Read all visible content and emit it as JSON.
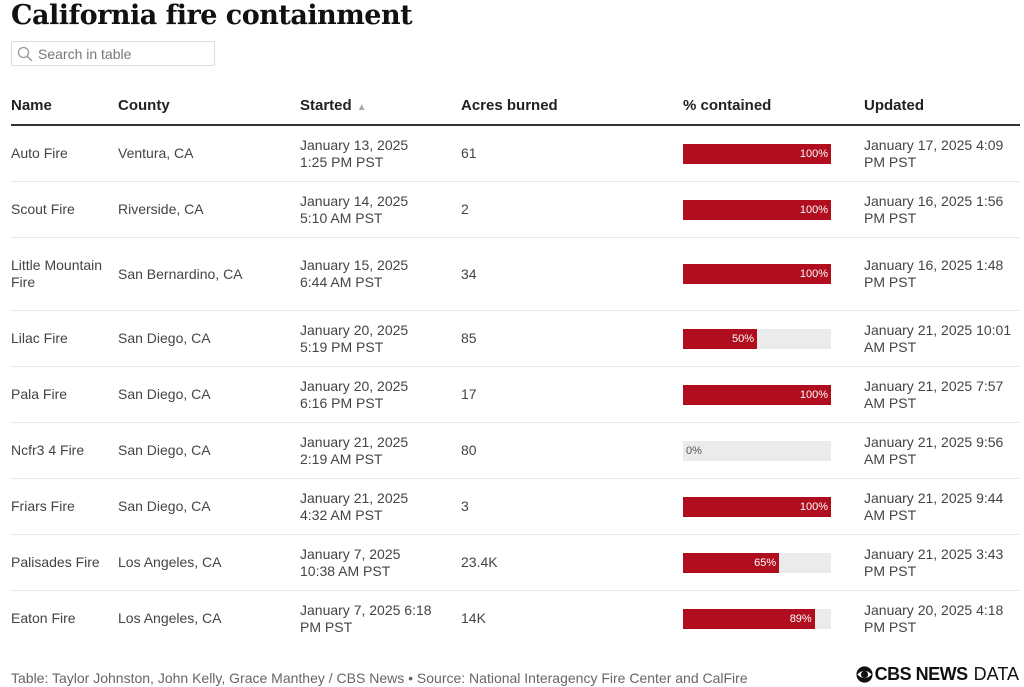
{
  "title": "California fire containment",
  "search": {
    "placeholder": "Search in table"
  },
  "columns": {
    "name": "Name",
    "county": "County",
    "started": "Started",
    "acres": "Acres burned",
    "contained": "% contained",
    "updated": "Updated"
  },
  "colors": {
    "bar_fill": "#b00d1e",
    "bar_track": "#ebebeb"
  },
  "rows": [
    {
      "name": "Auto Fire",
      "county": "Ventura, CA",
      "started_l1": "January 13, 2025",
      "started_l2": "1:25 PM PST",
      "acres": "61",
      "contained": 100,
      "contained_label": "100%",
      "updated_l1": "January 17, 2025 4:09",
      "updated_l2": "PM PST"
    },
    {
      "name": "Scout Fire",
      "county": "Riverside, CA",
      "started_l1": "January 14, 2025",
      "started_l2": "5:10 AM PST",
      "acres": "2",
      "contained": 100,
      "contained_label": "100%",
      "updated_l1": "January 16, 2025 1:56",
      "updated_l2": "PM PST"
    },
    {
      "name": "Little Mountain Fire",
      "county": "San Bernardino, CA",
      "started_l1": "January 15, 2025",
      "started_l2": "6:44 AM PST",
      "acres": "34",
      "contained": 100,
      "contained_label": "100%",
      "updated_l1": "January 16, 2025 1:48",
      "updated_l2": "PM PST"
    },
    {
      "name": "Lilac Fire",
      "county": "San Diego, CA",
      "started_l1": "January 20, 2025",
      "started_l2": "5:19 PM PST",
      "acres": "85",
      "contained": 50,
      "contained_label": "50%",
      "updated_l1": "January 21, 2025 10:01",
      "updated_l2": "AM PST"
    },
    {
      "name": "Pala Fire",
      "county": "San Diego, CA",
      "started_l1": "January 20, 2025",
      "started_l2": "6:16 PM PST",
      "acres": "17",
      "contained": 100,
      "contained_label": "100%",
      "updated_l1": "January 21, 2025 7:57",
      "updated_l2": "AM PST"
    },
    {
      "name": "Ncfr3 4 Fire",
      "county": "San Diego, CA",
      "started_l1": "January 21, 2025",
      "started_l2": "2:19 AM PST",
      "acres": "80",
      "contained": 0,
      "contained_label": "0%",
      "updated_l1": "January 21, 2025 9:56",
      "updated_l2": "AM PST"
    },
    {
      "name": "Friars Fire",
      "county": "San Diego, CA",
      "started_l1": "January 21, 2025",
      "started_l2": "4:32 AM PST",
      "acres": "3",
      "contained": 100,
      "contained_label": "100%",
      "updated_l1": "January 21, 2025 9:44",
      "updated_l2": "AM PST"
    },
    {
      "name": "Palisades Fire",
      "county": "Los Angeles, CA",
      "started_l1": "January 7, 2025",
      "started_l2": "10:38 AM PST",
      "acres": "23.4K",
      "contained": 65,
      "contained_label": "65%",
      "updated_l1": "January 21, 2025 3:43",
      "updated_l2": "PM PST"
    },
    {
      "name": "Eaton Fire",
      "county": "Los Angeles, CA",
      "started_l1": "January 7, 2025 6:18",
      "started_l2": "PM PST",
      "acres": "14K",
      "contained": 89,
      "contained_label": "89%",
      "updated_l1": "January 20, 2025 4:18",
      "updated_l2": "PM PST"
    }
  ],
  "footer": "Table: Taylor Johnston, John Kelly, Grace Manthey / CBS News • Source: National Interagency Fire Center and CalFire",
  "logo": {
    "brand": "CBS NEWS",
    "suffix": "DATA",
    "icon": "cbs-eye-icon"
  }
}
